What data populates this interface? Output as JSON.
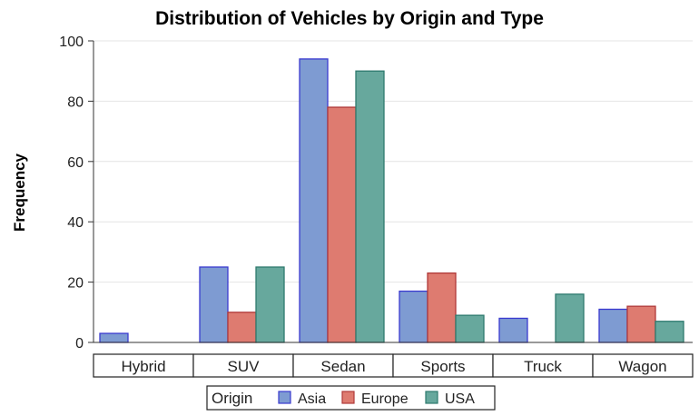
{
  "chart_data": {
    "type": "bar",
    "title": "Distribution of Vehicles by Origin and Type",
    "xlabel": "",
    "ylabel": "Frequency",
    "ylim": [
      0,
      100
    ],
    "yticks": [
      0,
      20,
      40,
      60,
      80,
      100
    ],
    "grid": true,
    "legend_position": "bottom",
    "legend_title": "Origin",
    "categories": [
      "Hybrid",
      "SUV",
      "Sedan",
      "Sports",
      "Truck",
      "Wagon"
    ],
    "series": [
      {
        "name": "Asia",
        "color": "#7E9BD2",
        "stroke": "#3A3ACF",
        "values": [
          3,
          25,
          94,
          17,
          8,
          11
        ]
      },
      {
        "name": "Europe",
        "color": "#DE7B70",
        "stroke": "#B03A3A",
        "values": [
          0,
          10,
          78,
          23,
          0,
          12
        ]
      },
      {
        "name": "USA",
        "color": "#67A89D",
        "stroke": "#2E7A6E",
        "values": [
          0,
          25,
          90,
          9,
          16,
          7
        ]
      }
    ]
  }
}
